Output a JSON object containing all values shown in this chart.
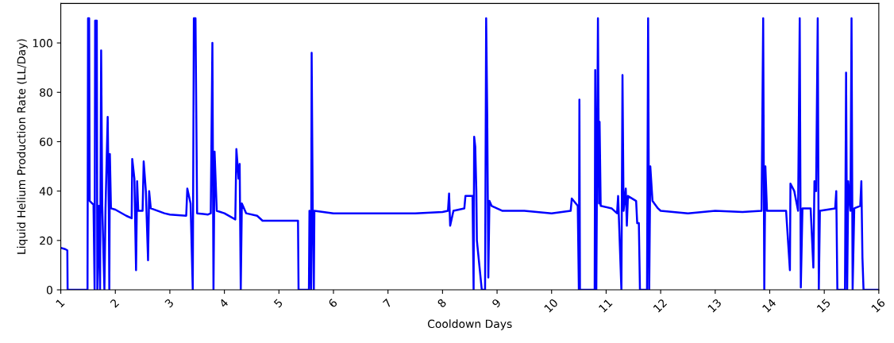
{
  "chart_data": {
    "type": "line",
    "xlabel": "Cooldown Days",
    "ylabel": "Liquid Helium Production Rate (LL/Day)",
    "xlim": [
      1,
      16
    ],
    "ylim": [
      0,
      116
    ],
    "xticks": [
      1,
      2,
      3,
      4,
      5,
      6,
      7,
      8,
      9,
      10,
      11,
      12,
      13,
      14,
      15,
      16
    ],
    "yticks": [
      0,
      20,
      40,
      60,
      80,
      100
    ],
    "grid": false,
    "marker": "none",
    "line_style": "solid",
    "series": [
      {
        "color": "#0000ff",
        "x": [
          1.0,
          1.08,
          1.12,
          1.125,
          1.49,
          1.5,
          1.52,
          1.53,
          1.6,
          1.62,
          1.63,
          1.66,
          1.67,
          1.7,
          1.72,
          1.74,
          1.76,
          1.8,
          1.82,
          1.86,
          1.88,
          1.89,
          1.9,
          1.92,
          2.0,
          2.2,
          2.3,
          2.31,
          2.35,
          2.38,
          2.4,
          2.42,
          2.5,
          2.52,
          2.56,
          2.6,
          2.62,
          2.65,
          2.9,
          3.0,
          3.3,
          3.32,
          3.38,
          3.42,
          3.44,
          3.47,
          3.5,
          3.7,
          3.75,
          3.78,
          3.8,
          3.82,
          3.86,
          4.0,
          4.2,
          4.22,
          4.26,
          4.28,
          4.3,
          4.32,
          4.4,
          4.6,
          4.7,
          5.0,
          5.35,
          5.36,
          5.55,
          5.56,
          5.59,
          5.6,
          5.62,
          5.64,
          5.65,
          6.0,
          7.0,
          7.5,
          8.0,
          8.1,
          8.12,
          8.14,
          8.2,
          8.4,
          8.42,
          8.55,
          8.57,
          8.58,
          8.6,
          8.62,
          8.63,
          8.72,
          8.78,
          8.8,
          8.82,
          8.84,
          8.86,
          8.9,
          9.1,
          9.5,
          10.0,
          10.35,
          10.37,
          10.48,
          10.5,
          10.51,
          10.52,
          10.79,
          10.8,
          10.82,
          10.85,
          10.87,
          10.88,
          10.9,
          11.1,
          11.2,
          11.22,
          11.28,
          11.3,
          11.32,
          11.36,
          11.38,
          11.4,
          11.55,
          11.57,
          11.6,
          11.62,
          11.75,
          11.77,
          11.79,
          11.81,
          11.85,
          11.95,
          12.0,
          12.5,
          13.0,
          13.5,
          13.85,
          13.88,
          13.9,
          13.92,
          13.95,
          14.3,
          14.37,
          14.38,
          14.45,
          14.52,
          14.55,
          14.57,
          14.6,
          14.75,
          14.8,
          14.82,
          14.85,
          14.88,
          14.9,
          14.92,
          15.2,
          15.22,
          15.24,
          15.38,
          15.4,
          15.42,
          15.44,
          15.48,
          15.5,
          15.52,
          15.55,
          15.66,
          15.68,
          15.7,
          15.72,
          16.0
        ],
        "values": [
          17,
          16.5,
          16,
          0,
          0,
          110,
          110,
          36,
          34.5,
          0,
          109,
          109,
          0,
          34,
          0,
          97,
          34,
          0,
          33,
          70,
          33,
          0,
          55,
          33,
          32.5,
          30,
          29,
          53,
          45,
          8,
          44,
          32,
          32,
          52,
          40,
          12,
          40,
          33,
          31,
          30.5,
          30,
          41,
          35,
          0,
          110,
          110,
          31,
          30.5,
          31,
          100,
          0,
          56,
          32,
          31,
          28.5,
          57,
          45,
          51,
          0,
          35,
          31,
          30,
          28,
          28,
          28,
          0,
          0,
          32,
          0,
          96,
          32,
          0,
          32,
          31,
          31,
          31,
          31.5,
          32,
          39,
          26,
          32,
          33,
          38,
          38,
          0,
          62,
          58,
          40,
          20,
          0,
          0,
          110,
          70,
          5,
          36,
          34,
          32,
          32,
          31,
          32,
          37,
          34,
          0,
          77,
          0,
          0,
          89,
          0,
          110,
          35,
          68,
          34,
          33,
          31,
          38,
          0,
          87,
          32,
          41,
          26,
          38,
          36,
          27,
          27,
          0,
          0,
          110,
          0,
          50,
          36,
          33,
          32,
          31,
          32,
          31.5,
          32,
          110,
          0,
          50,
          32,
          32,
          8,
          43,
          40,
          32,
          110,
          1,
          33,
          33,
          9,
          44,
          40,
          110,
          0,
          32,
          33,
          40,
          0,
          0,
          88,
          0,
          44,
          32,
          110,
          0,
          33,
          34,
          44,
          13,
          0,
          0
        ]
      }
    ]
  }
}
